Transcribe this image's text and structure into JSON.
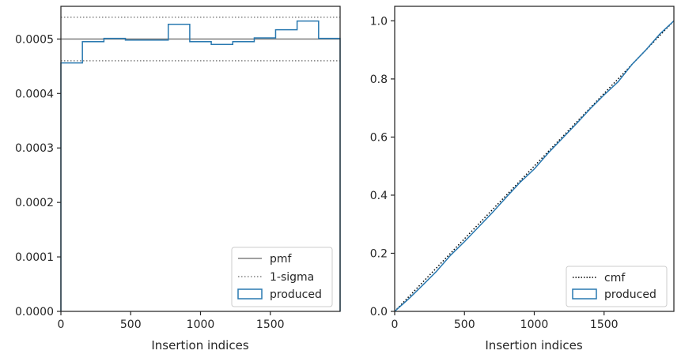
{
  "chart_data": [
    {
      "type": "step-histogram",
      "xlabel": "Insertion indices",
      "ylabel": "",
      "xlim": [
        0,
        2000
      ],
      "ylim": [
        0,
        0.00056
      ],
      "xticks": [
        0,
        500,
        1000,
        1500
      ],
      "xtick_labels": [
        "0",
        "500",
        "1000",
        "1500"
      ],
      "yticks": [
        0,
        0.0001,
        0.0002,
        0.0003,
        0.0004,
        0.0005
      ],
      "ytick_labels": [
        "0.0000",
        "0.0001",
        "0.0002",
        "0.0003",
        "0.0004",
        "0.0005"
      ],
      "bin_edges": [
        0,
        154,
        308,
        462,
        615,
        769,
        923,
        1077,
        1231,
        1385,
        1538,
        1692,
        1846,
        2000
      ],
      "series": [
        {
          "name": "produced",
          "values": [
            0.000456,
            0.000495,
            0.000501,
            0.000498,
            0.000498,
            0.000527,
            0.000495,
            0.00049,
            0.000495,
            0.000502,
            0.000517,
            0.000533,
            0.000501
          ],
          "color": "#2878b0"
        }
      ],
      "reference_lines": [
        {
          "name": "pmf",
          "y": 0.0005,
          "style": "solid",
          "color": "#808080"
        },
        {
          "name": "1-sigma",
          "y": [
            0.00046,
            0.00054
          ],
          "style": "dotted",
          "color": "#808080"
        }
      ],
      "legend": {
        "position": "bottom-right",
        "entries": [
          "pmf",
          "1-sigma",
          "produced"
        ]
      },
      "grid": false
    },
    {
      "type": "line",
      "xlabel": "Insertion indices",
      "ylabel": "",
      "xlim": [
        0,
        2000
      ],
      "ylim": [
        0,
        1.05
      ],
      "xticks": [
        0,
        500,
        1000,
        1500
      ],
      "xtick_labels": [
        "0",
        "500",
        "1000",
        "1500"
      ],
      "yticks": [
        0,
        0.2,
        0.4,
        0.6,
        0.8,
        1.0
      ],
      "ytick_labels": [
        "0.0",
        "0.2",
        "0.4",
        "0.6",
        "0.8",
        "1.0"
      ],
      "series": [
        {
          "name": "cmf",
          "x": [
            0,
            2000
          ],
          "y": [
            0,
            1.0
          ],
          "style": "dotted",
          "color": "#000000"
        },
        {
          "name": "produced",
          "x": [
            0,
            100,
            200,
            300,
            400,
            500,
            600,
            700,
            800,
            900,
            1000,
            1100,
            1200,
            1300,
            1400,
            1500,
            1600,
            1700,
            1800,
            1900,
            2000
          ],
          "y": [
            0,
            0.043,
            0.09,
            0.138,
            0.193,
            0.24,
            0.29,
            0.34,
            0.393,
            0.445,
            0.49,
            0.545,
            0.595,
            0.645,
            0.697,
            0.745,
            0.79,
            0.85,
            0.9,
            0.955,
            1.0
          ],
          "style": "solid",
          "color": "#2878b0"
        }
      ],
      "legend": {
        "position": "bottom-right",
        "entries": [
          "cmf",
          "produced"
        ]
      },
      "grid": false
    }
  ]
}
